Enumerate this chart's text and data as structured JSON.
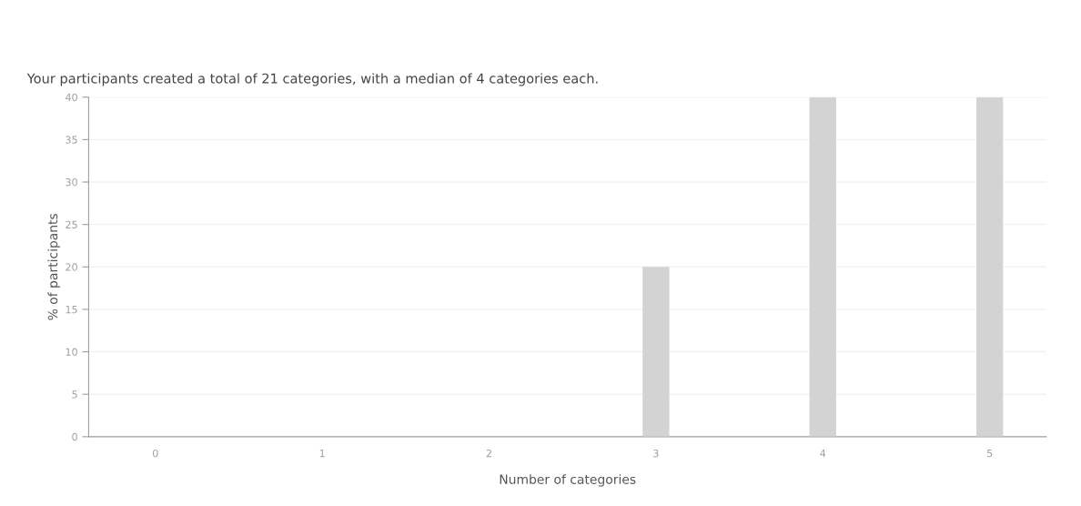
{
  "chart_data": {
    "type": "bar",
    "title": "Your participants created a total of 21 categories, with a median of 4 categories each.",
    "xlabel": "Number of categories",
    "ylabel": "% of participants",
    "categories": [
      "0",
      "1",
      "2",
      "3",
      "4",
      "5"
    ],
    "values": [
      0,
      0,
      0,
      20,
      40,
      40
    ],
    "color": "#d3d3d3",
    "ylim": [
      0,
      40
    ],
    "yticks": [
      0,
      5,
      10,
      15,
      20,
      25,
      30,
      35,
      40
    ],
    "grid": "y",
    "legend": false
  }
}
